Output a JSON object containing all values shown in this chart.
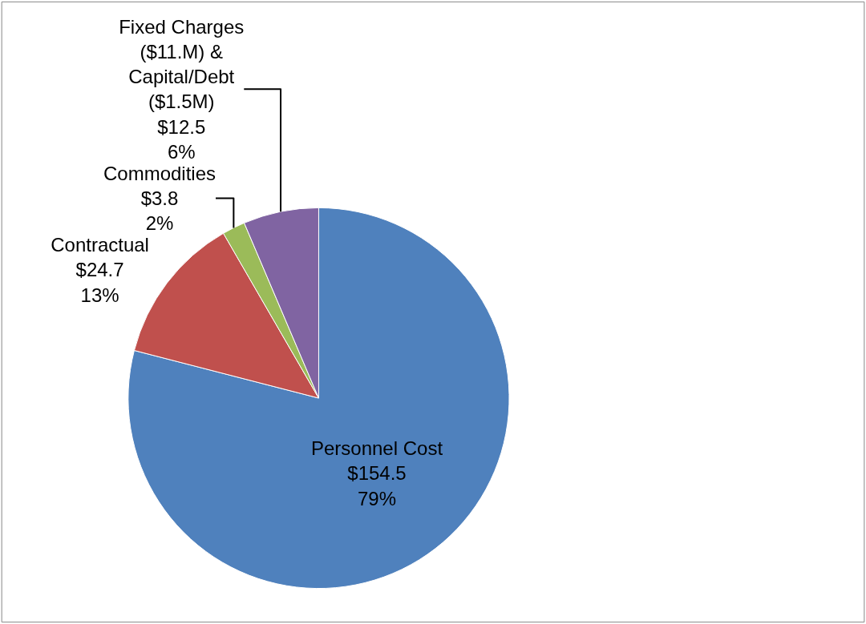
{
  "chart_data": {
    "type": "pie",
    "categories": [
      "Personnel Cost",
      "Contractual",
      "Commodities",
      "Fixed Charges\n($11.M) &\nCapital/Debt\n($1.5M)"
    ],
    "values": [
      154.5,
      24.7,
      3.8,
      12.5
    ],
    "colors": [
      "#4f81bd",
      "#c0504d",
      "#9bbb59",
      "#8064a2"
    ],
    "value_labels": [
      "$154.5\n79%",
      "$24.7\n13%",
      "$3.8\n2%",
      "$12.5\n6%"
    ],
    "legend": false
  }
}
